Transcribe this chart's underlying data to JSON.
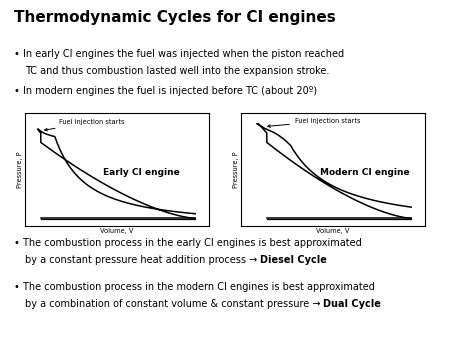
{
  "title": "Thermodynamic Cycles for CI engines",
  "title_fontsize": 11,
  "title_fontweight": "bold",
  "background_color": "#ffffff",
  "bullet1_line1": "In early CI engines the fuel was injected when the piston reached",
  "bullet1_line2": "TC and thus combustion lasted well into the expansion stroke.",
  "bullet2": "In modern engines the fuel is injected before TC (about 20º)",
  "bullet3_line1": "The combustion process in the early CI engines is best approximated",
  "bullet3_line2": "by a constant pressure heat addition process → ",
  "bullet3_bold": "Diesel Cycle",
  "bullet4_line1": "The combustion process in the modern CI engines is best approximated",
  "bullet4_line2": "by a combination of constant volume & constant pressure → ",
  "bullet4_bold": "Dual Cycle",
  "left_label": "Early CI engine",
  "right_label": "Modern CI engine",
  "xlabel": "Volume, V",
  "ylabel": "Pressure, P",
  "fuel_injection_label": "Fuel injection starts",
  "text_fontsize": 7.0,
  "diagram_label_fontsize": 6.5,
  "annotation_fontsize": 4.8,
  "axis_label_fontsize": 4.8
}
